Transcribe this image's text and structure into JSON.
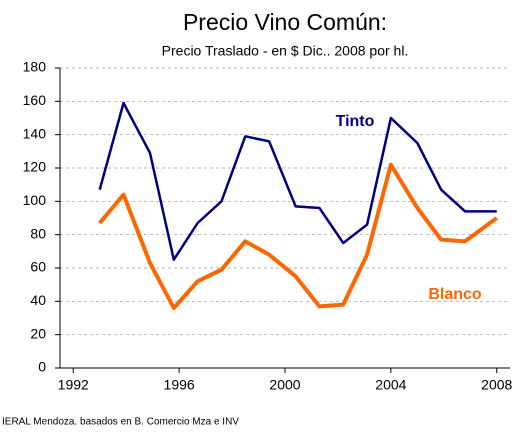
{
  "chart_data": {
    "type": "line",
    "title": "Precio Vino Común:",
    "subtitle": "Precio Traslado - en $ Dic.. 2008 por hl.",
    "source": "IERAL Mendoza. basados en B. Comercio Mza e INV",
    "x": [
      1993.0,
      1993.9,
      1994.9,
      1995.8,
      1996.7,
      1997.6,
      1998.5,
      1999.4,
      2000.4,
      2001.3,
      2002.2,
      2003.1,
      2004.0,
      2005.0,
      2005.9,
      2006.8,
      2008.0
    ],
    "series": [
      {
        "name": "Tinto",
        "color": "#000080",
        "values": [
          107,
          159,
          129,
          65,
          87,
          100,
          139,
          136,
          97,
          96,
          75,
          86,
          150,
          135,
          107,
          94,
          94
        ]
      },
      {
        "name": "Blanco",
        "color": "#ff6600",
        "values": [
          87,
          104,
          63,
          36,
          52,
          59,
          76,
          68,
          55,
          37,
          38,
          68,
          122,
          96,
          77,
          76,
          90
        ]
      }
    ],
    "xlim": [
      1991.5,
      2008.5
    ],
    "xticks": [
      1992,
      1996,
      2000,
      2004,
      2008
    ],
    "ylim": [
      0,
      180
    ],
    "yticks": [
      0,
      20,
      40,
      60,
      80,
      100,
      120,
      140,
      160,
      180
    ],
    "grid": true
  }
}
